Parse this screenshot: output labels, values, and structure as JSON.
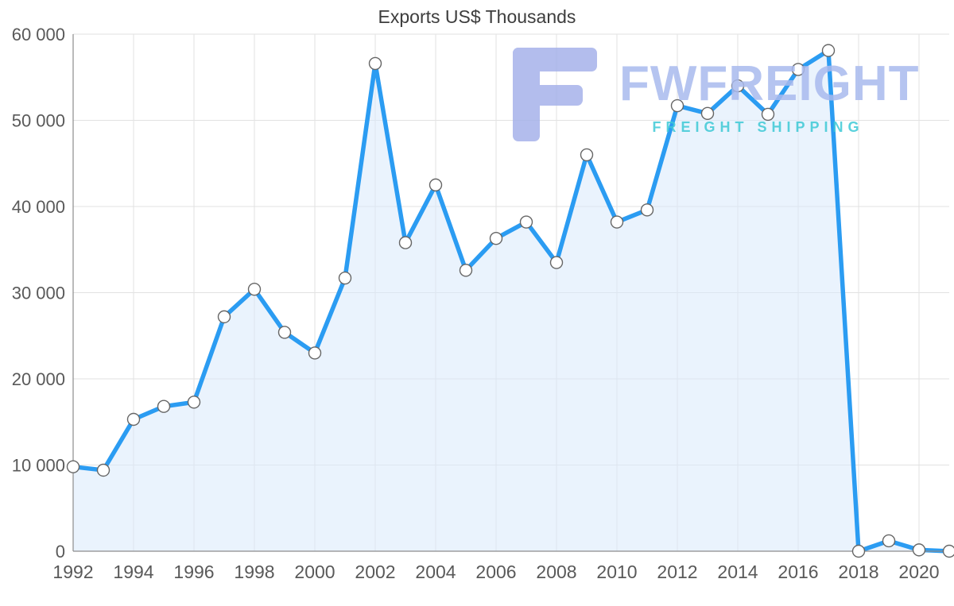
{
  "chart_data": {
    "type": "area",
    "title": "Exports US$ Thousands",
    "xlabel": "",
    "ylabel": "",
    "x": [
      1992,
      1993,
      1994,
      1995,
      1996,
      1997,
      1998,
      1999,
      2000,
      2001,
      2002,
      2003,
      2004,
      2005,
      2006,
      2007,
      2008,
      2009,
      2010,
      2011,
      2012,
      2013,
      2014,
      2015,
      2016,
      2017,
      2018,
      2019,
      2020,
      2021
    ],
    "values": [
      9800,
      9400,
      15300,
      16800,
      17300,
      27200,
      30400,
      25400,
      23000,
      31700,
      56600,
      35800,
      42500,
      32600,
      36300,
      38200,
      33500,
      46000,
      38200,
      39600,
      51700,
      50800,
      54000,
      50700,
      55900,
      58100,
      0,
      1200,
      150,
      0
    ],
    "ylim": [
      0,
      60000
    ],
    "yticks": [
      {
        "value": 0,
        "label": "0"
      },
      {
        "value": 10000,
        "label": "10 000"
      },
      {
        "value": 20000,
        "label": "20 000"
      },
      {
        "value": 30000,
        "label": "30 000"
      },
      {
        "value": 40000,
        "label": "40 000"
      },
      {
        "value": 50000,
        "label": "50 000"
      },
      {
        "value": 60000,
        "label": "60 000"
      }
    ],
    "xticks": [
      1992,
      1994,
      1996,
      1998,
      2000,
      2002,
      2004,
      2006,
      2008,
      2010,
      2012,
      2014,
      2016,
      2018,
      2020
    ],
    "grid": true,
    "legend": "none",
    "colors": {
      "line": "#2b9cf2",
      "fill": "#d9eafb",
      "fill_opacity": "0.55",
      "marker": "#ffffff",
      "marker_stroke": "#666666"
    }
  },
  "logo": {
    "wordmark": "FWFREIGHT",
    "tagline": "FREIGHT SHIPPING",
    "colors": {
      "wordmark": "#a9baee",
      "tagline": "#3ec9d6",
      "icon": "#a6b2ea"
    }
  }
}
